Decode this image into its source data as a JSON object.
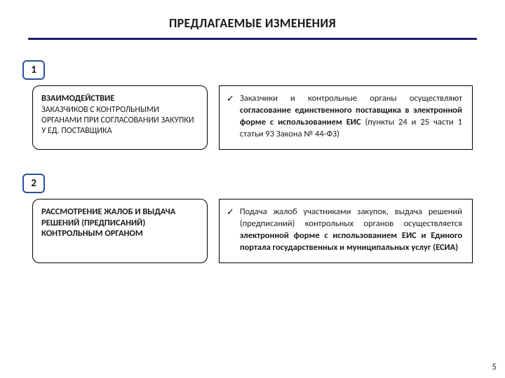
{
  "title": "ПРЕДЛАГАЕМЫЕ ИЗМЕНЕНИЯ",
  "page_number": "5",
  "section1": {
    "num": "1",
    "left_title": "ВЗАИМОДЕЙСТВИЕ",
    "left_body": "ЗАКАЗЧИКОВ С КОНТРОЛЬНЫМИ ОРГАНАМИ ПРИ СОГЛАСОВАНИИ ЗАКУПКИ У ЕД. ПОСТАВЩИКА",
    "right_prefix": "Заказчики и контрольные органы осуществляют ",
    "right_bold": "согласование единственного поставщика в электронной форме с использованием ЕИС",
    "right_suffix": " (пункты 24 и 25 части 1 статьи 93 Закона № 44-ФЗ)"
  },
  "section2": {
    "num": "2",
    "left_title": "РАССМОТРЕНИЕ ЖАЛОБ И ВЫДАЧА РЕШЕНИЙ (ПРЕДПИСАНИЙ) КОНТРОЛЬНЫМ ОРГАНОМ",
    "right_prefix": "Подача жалоб участниками закупок, выдача решений (предписаний) контрольных органов осуществляется ",
    "right_bold": "электронной форме с использованием ЕИС и Единого портала государственных и муниципальных услуг (ЕСИА)",
    "right_suffix": ""
  },
  "styles": {
    "hr_color": "#1a1a66",
    "numbox_border": "#2a4ea0",
    "checkmark": "✓"
  }
}
